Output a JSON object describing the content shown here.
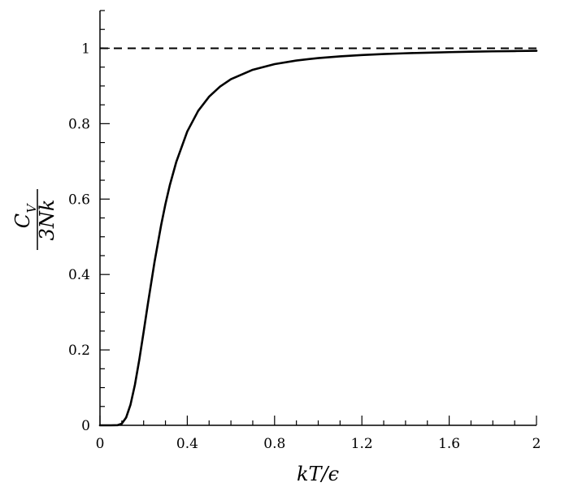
{
  "chart_data": {
    "type": "line",
    "title": "",
    "xlabel": "kT/ϵ",
    "ylabel": {
      "numerator": "C",
      "numerator_subscript": "V",
      "denominator": "3Nk"
    },
    "xlim": [
      0,
      2
    ],
    "ylim": [
      0,
      1.1
    ],
    "xticks": [
      "0",
      "0.4",
      "0.8",
      "1.2",
      "1.6",
      "2"
    ],
    "xtick_values": [
      0,
      0.4,
      0.8,
      1.2,
      1.6,
      2
    ],
    "yticks": [
      "0",
      "0.2",
      "0.4",
      "0.6",
      "0.8",
      "1"
    ],
    "ytick_values": [
      0,
      0.2,
      0.4,
      0.6,
      0.8,
      1
    ],
    "grid": false,
    "series": [
      {
        "style": "solid",
        "color": "#000000",
        "x": [
          0,
          0.05,
          0.08,
          0.1,
          0.12,
          0.14,
          0.16,
          0.18,
          0.2,
          0.22,
          0.25,
          0.28,
          0.3,
          0.32,
          0.35,
          0.4,
          0.45,
          0.5,
          0.55,
          0.6,
          0.7,
          0.8,
          0.9,
          1.0,
          1.1,
          1.2,
          1.3,
          1.4,
          1.5,
          1.6,
          1.7,
          1.8,
          1.9,
          2.0
        ],
        "y": [
          0,
          0,
          0.0003,
          0.0045,
          0.0208,
          0.0551,
          0.1073,
          0.1735,
          0.2476,
          0.3242,
          0.4337,
          0.5304,
          0.5871,
          0.6369,
          0.6993,
          0.7794,
          0.834,
          0.8716,
          0.8984,
          0.918,
          0.9429,
          0.9579,
          0.9675,
          0.974,
          0.9786,
          0.982,
          0.9846,
          0.9867,
          0.9883,
          0.9897,
          0.9908,
          0.9918,
          0.9926,
          0.9934
        ]
      },
      {
        "style": "dashed",
        "color": "#000000",
        "x": [
          0,
          2
        ],
        "y": [
          1,
          1
        ]
      }
    ]
  }
}
